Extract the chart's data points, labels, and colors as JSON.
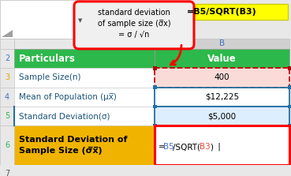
{
  "col_header_bg": "#2DB84B",
  "col_header_text": "#FFFFFF",
  "row2_label": "Particulars",
  "row2_value": "Value",
  "rows": [
    {
      "num": "3",
      "label": "Sample Size(n)",
      "value": "400",
      "label_bg": "#FFFFFF",
      "value_bg": "#FADBD8",
      "label_border": "none",
      "value_border": "red_dashed"
    },
    {
      "num": "4",
      "label": "Mean of Population (μx̅)",
      "value": "$12,225",
      "label_bg": "#FFFFFF",
      "value_bg": "#FFFFFF",
      "label_border": "none",
      "value_border": "blue_solid"
    },
    {
      "num": "5",
      "label": "Standard Deviation(σ)",
      "value": "$5,000",
      "label_bg": "#FFFFFF",
      "value_bg": "#DDEEFF",
      "label_border": "blue_left",
      "value_border": "blue_solid"
    },
    {
      "num": "6",
      "label": "Standard Deviation of\nSample Size (σ̅x̅)",
      "value": "",
      "label_bg": "#F0B400",
      "value_bg": "#FFFFFF",
      "label_border": "none",
      "value_border": "red_solid"
    }
  ],
  "row7_num": "7",
  "callout_text": "standard deviation\nof sample size (σ̅x)\n= σ / √n",
  "formula_label": "=B5/SQRT(B3)",
  "formula_bg": "#FFFF00",
  "bg_color": "#E8E8E8",
  "col_b_label": "B",
  "row_num_colors": [
    "#4472C4",
    "#E8A000",
    "#4472C4",
    "#2DB84B",
    "#2DB84B"
  ],
  "left_col_bg": "#E8E8E8",
  "top_left_bg": "#FFFFFF",
  "corner_tri_color": "#C0C0C0"
}
